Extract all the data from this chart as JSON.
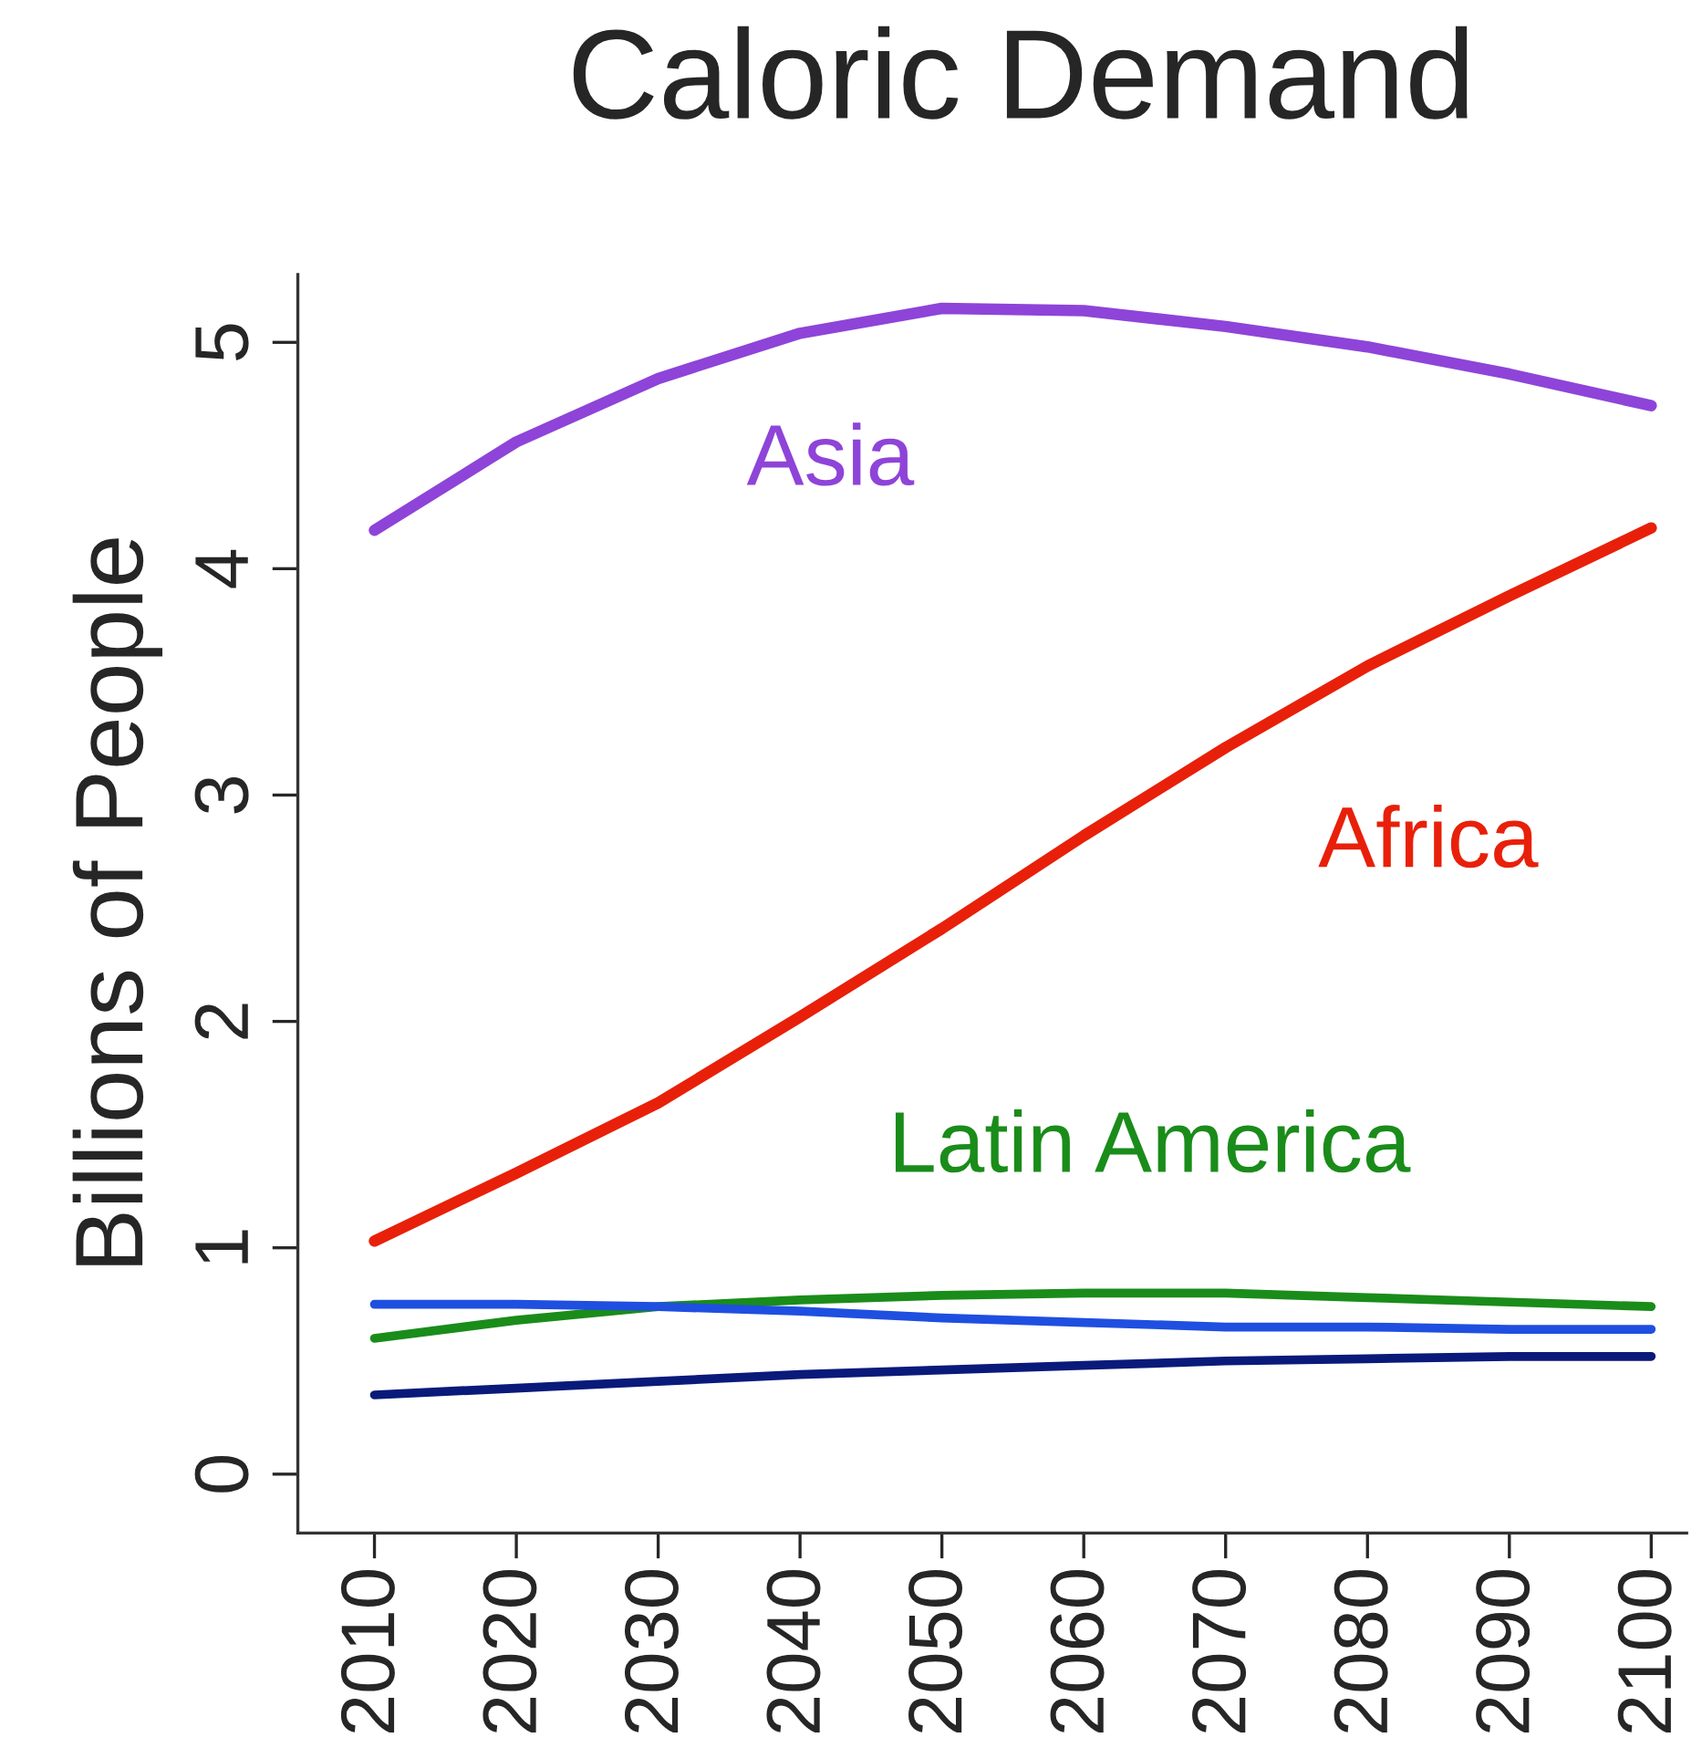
{
  "chart_data": {
    "type": "line",
    "title": "Caloric Demand",
    "ylabel": "Billions of People",
    "x": [
      2010,
      2020,
      2030,
      2040,
      2050,
      2060,
      2070,
      2080,
      2090,
      2100
    ],
    "series": [
      {
        "name": "Asia",
        "color": "#8e44d8",
        "values": [
          4.17,
          4.56,
          4.84,
          5.04,
          5.15,
          5.14,
          5.07,
          4.98,
          4.86,
          4.72
        ]
      },
      {
        "name": "Africa",
        "color": "#e8200a",
        "values": [
          1.03,
          1.33,
          1.64,
          2.02,
          2.41,
          2.82,
          3.21,
          3.57,
          3.88,
          4.18
        ]
      },
      {
        "name": "Latin America",
        "color": "#1a8c1a",
        "values": [
          0.6,
          0.68,
          0.74,
          0.77,
          0.79,
          0.8,
          0.8,
          0.78,
          0.76,
          0.74
        ]
      },
      {
        "color": "#1f4fe0",
        "values": [
          0.75,
          0.75,
          0.74,
          0.72,
          0.69,
          0.67,
          0.65,
          0.65,
          0.64,
          0.64
        ]
      },
      {
        "color": "#0a1a7a",
        "values": [
          0.35,
          0.38,
          0.41,
          0.44,
          0.46,
          0.48,
          0.5,
          0.51,
          0.52,
          0.52
        ]
      }
    ],
    "xlim": [
      2004.6,
      2102.5
    ],
    "ylim": [
      -0.26,
      5.3
    ],
    "xticks": [
      2010,
      2020,
      2030,
      2040,
      2050,
      2060,
      2070,
      2080,
      2090,
      2100
    ],
    "yticks": [
      0,
      1,
      2,
      3,
      4,
      5
    ],
    "grid": false,
    "legend": false,
    "marker": "none",
    "line_style": "solid"
  }
}
